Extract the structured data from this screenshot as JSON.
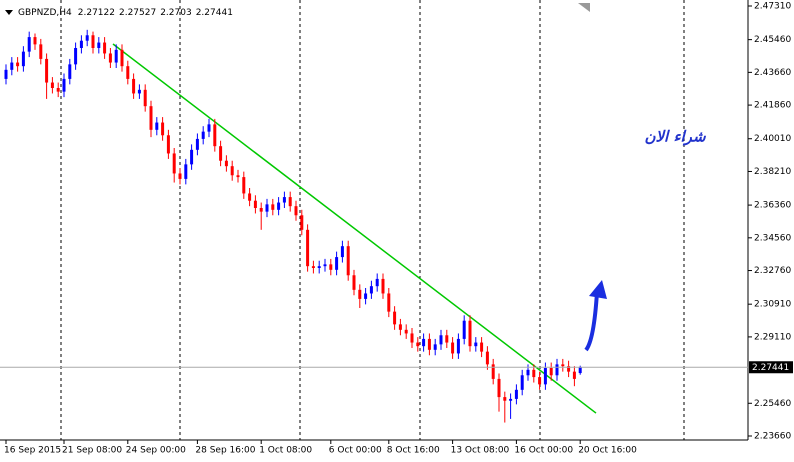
{
  "chart_data": {
    "type": "candlestick",
    "symbol": "GBPNZD,H4",
    "annotation": "شراء الان",
    "up_color": "#0000ff",
    "down_color": "#ff0000",
    "trendline": {
      "start_price": 2.4522,
      "end_price": 2.2492,
      "color": "#00c800"
    },
    "ylim": [
      2.2344,
      2.4764
    ],
    "yticks": [
      {
        "value": 2.4731,
        "label": "2.47310"
      },
      {
        "value": 2.4546,
        "label": "2.45460"
      },
      {
        "value": 2.4366,
        "label": "2.43660"
      },
      {
        "value": 2.4186,
        "label": "2.41860"
      },
      {
        "value": 2.4001,
        "label": "2.40010"
      },
      {
        "value": 2.3821,
        "label": "2.38210"
      },
      {
        "value": 2.3636,
        "label": "2.36360"
      },
      {
        "value": 2.3456,
        "label": "2.34560"
      },
      {
        "value": 2.3276,
        "label": "2.32760"
      },
      {
        "value": 2.3091,
        "label": "2.30910"
      },
      {
        "value": 2.2911,
        "label": "2.29110"
      },
      {
        "value": 2.2546,
        "label": "2.25460"
      },
      {
        "value": 2.2366,
        "label": "2.23660"
      }
    ],
    "categories": [
      "16 Sep 2015",
      null,
      null,
      null,
      null,
      null,
      null,
      null,
      null,
      null,
      "21 Sep 08:00",
      null,
      null,
      null,
      null,
      null,
      null,
      null,
      null,
      null,
      null,
      "24 Sep 00:00",
      null,
      null,
      null,
      null,
      null,
      null,
      null,
      null,
      null,
      null,
      null,
      "28 Sep 16:00",
      null,
      null,
      null,
      null,
      null,
      null,
      null,
      null,
      null,
      null,
      "1 Oct 08:00",
      null,
      null,
      null,
      null,
      null,
      null,
      null,
      null,
      null,
      null,
      null,
      "6 Oct 00:00",
      null,
      null,
      null,
      null,
      null,
      null,
      null,
      null,
      null,
      "8 Oct 16:00",
      null,
      null,
      null,
      null,
      null,
      null,
      null,
      null,
      null,
      null,
      "13 Oct 08:00",
      null,
      null,
      null,
      null,
      null,
      null,
      null,
      null,
      null,
      null,
      "16 Oct 00:00",
      null,
      null,
      null,
      null,
      null,
      null,
      null,
      null,
      null,
      null,
      "20 Oct 16:00"
    ],
    "open": [
      2.433,
      2.438,
      2.442,
      2.44,
      2.448,
      2.456,
      2.452,
      2.444,
      2.431,
      2.428,
      2.426,
      2.433,
      2.441,
      2.45,
      2.454,
      2.457,
      2.45,
      2.453,
      2.447,
      2.442,
      2.449,
      2.44,
      2.433,
      2.425,
      2.427,
      2.418,
      2.405,
      2.409,
      2.402,
      2.392,
      2.381,
      2.378,
      2.386,
      2.394,
      2.4,
      2.404,
      2.408,
      2.396,
      2.388,
      2.385,
      2.38,
      2.379,
      2.37,
      2.366,
      2.362,
      2.36,
      2.364,
      2.361,
      2.365,
      2.368,
      2.363,
      2.358,
      2.35,
      2.33,
      2.329,
      2.33,
      2.331,
      2.328,
      2.335,
      2.341,
      2.325,
      2.317,
      2.312,
      2.315,
      2.319,
      2.323,
      2.315,
      2.305,
      2.298,
      2.295,
      2.293,
      2.288,
      2.286,
      2.29,
      2.284,
      2.287,
      2.292,
      2.288,
      2.282,
      2.29,
      2.3,
      2.286,
      2.288,
      2.283,
      2.276,
      2.268,
      2.258,
      2.256,
      2.257,
      2.262,
      2.27,
      2.273,
      2.269,
      2.265,
      2.274,
      2.27,
      2.276,
      2.275,
      2.272,
      2.27122
    ],
    "high": [
      2.441,
      2.445,
      2.445,
      2.451,
      2.459,
      2.458,
      2.455,
      2.447,
      2.434,
      2.431,
      2.436,
      2.444,
      2.453,
      2.457,
      2.46,
      2.459,
      2.456,
      2.456,
      2.45,
      2.452,
      2.452,
      2.443,
      2.436,
      2.43,
      2.43,
      2.421,
      2.412,
      2.412,
      2.405,
      2.395,
      2.384,
      2.389,
      2.397,
      2.403,
      2.407,
      2.411,
      2.411,
      2.399,
      2.391,
      2.388,
      2.383,
      2.382,
      2.373,
      2.369,
      2.365,
      2.367,
      2.367,
      2.368,
      2.371,
      2.371,
      2.366,
      2.361,
      2.353,
      2.333,
      2.333,
      2.334,
      2.334,
      2.338,
      2.344,
      2.344,
      2.328,
      2.32,
      2.318,
      2.322,
      2.326,
      2.326,
      2.318,
      2.308,
      2.301,
      2.298,
      2.296,
      2.291,
      2.293,
      2.293,
      2.29,
      2.295,
      2.295,
      2.291,
      2.293,
      2.303,
      2.303,
      2.291,
      2.291,
      2.286,
      2.279,
      2.271,
      2.261,
      2.26,
      2.265,
      2.273,
      2.276,
      2.276,
      2.272,
      2.277,
      2.277,
      2.279,
      2.279,
      2.278,
      2.275,
      2.27527
    ],
    "low": [
      2.43,
      2.435,
      2.437,
      2.437,
      2.445,
      2.449,
      2.441,
      2.422,
      2.425,
      2.423,
      2.423,
      2.43,
      2.438,
      2.447,
      2.451,
      2.447,
      2.447,
      2.444,
      2.439,
      2.439,
      2.437,
      2.43,
      2.422,
      2.422,
      2.415,
      2.401,
      2.402,
      2.399,
      2.389,
      2.376,
      2.375,
      2.375,
      2.383,
      2.391,
      2.397,
      2.401,
      2.393,
      2.385,
      2.382,
      2.377,
      2.376,
      2.367,
      2.363,
      2.359,
      2.35,
      2.357,
      2.358,
      2.358,
      2.362,
      2.36,
      2.355,
      2.347,
      2.327,
      2.326,
      2.326,
      2.327,
      2.325,
      2.325,
      2.332,
      2.322,
      2.314,
      2.307,
      2.309,
      2.312,
      2.316,
      2.312,
      2.302,
      2.295,
      2.292,
      2.29,
      2.285,
      2.283,
      2.283,
      2.281,
      2.281,
      2.284,
      2.285,
      2.279,
      2.279,
      2.287,
      2.283,
      2.283,
      2.28,
      2.273,
      2.265,
      2.25,
      2.244,
      2.246,
      2.254,
      2.259,
      2.267,
      2.266,
      2.262,
      2.262,
      2.267,
      2.267,
      2.272,
      2.269,
      2.264,
      2.2703
    ],
    "close": [
      2.438,
      2.442,
      2.44,
      2.448,
      2.456,
      2.452,
      2.444,
      2.431,
      2.428,
      2.426,
      2.433,
      2.441,
      2.45,
      2.454,
      2.457,
      2.45,
      2.453,
      2.447,
      2.442,
      2.449,
      2.44,
      2.433,
      2.425,
      2.427,
      2.418,
      2.405,
      2.409,
      2.402,
      2.392,
      2.381,
      2.378,
      2.386,
      2.394,
      2.4,
      2.404,
      2.408,
      2.396,
      2.388,
      2.385,
      2.38,
      2.379,
      2.37,
      2.366,
      2.362,
      2.36,
      2.364,
      2.361,
      2.365,
      2.368,
      2.363,
      2.358,
      2.35,
      2.33,
      2.329,
      2.33,
      2.331,
      2.328,
      2.335,
      2.341,
      2.325,
      2.317,
      2.312,
      2.315,
      2.319,
      2.323,
      2.315,
      2.305,
      2.298,
      2.295,
      2.293,
      2.288,
      2.286,
      2.29,
      2.284,
      2.287,
      2.292,
      2.288,
      2.282,
      2.29,
      2.3,
      2.286,
      2.288,
      2.283,
      2.276,
      2.268,
      2.258,
      2.256,
      2.257,
      2.262,
      2.27,
      2.273,
      2.269,
      2.265,
      2.274,
      2.27,
      2.276,
      2.275,
      2.272,
      2.268,
      2.27441
    ]
  }
}
